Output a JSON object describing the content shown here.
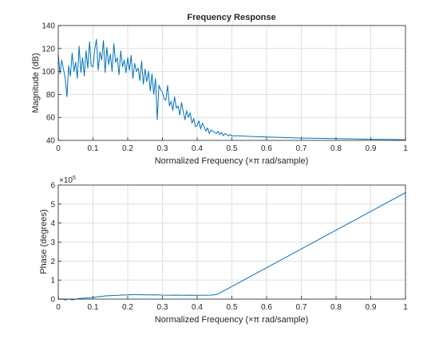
{
  "chart_data": [
    {
      "type": "line",
      "title": "Frequency Response",
      "xlabel": "Normalized Frequency  (×π rad/sample)",
      "ylabel": "Magnitude (dB)",
      "xlim": [
        0,
        1
      ],
      "ylim": [
        40,
        140
      ],
      "x_ticks": [
        "0",
        "0.1",
        "0.2",
        "0.3",
        "0.4",
        "0.5",
        "0.6",
        "0.7",
        "0.8",
        "0.9",
        "1"
      ],
      "y_ticks": [
        "40",
        "60",
        "80",
        "100",
        "120",
        "140"
      ],
      "grid": true,
      "color": "#0072bd",
      "series": [
        {
          "x": [
            0,
            0.005,
            0.01,
            0.015,
            0.02,
            0.025,
            0.03,
            0.035,
            0.04,
            0.045,
            0.05,
            0.055,
            0.06,
            0.065,
            0.07,
            0.075,
            0.08,
            0.085,
            0.09,
            0.095,
            0.1,
            0.105,
            0.11,
            0.115,
            0.12,
            0.125,
            0.13,
            0.135,
            0.14,
            0.145,
            0.15,
            0.155,
            0.16,
            0.165,
            0.17,
            0.175,
            0.18,
            0.185,
            0.19,
            0.195,
            0.2,
            0.205,
            0.21,
            0.215,
            0.22,
            0.225,
            0.23,
            0.235,
            0.24,
            0.245,
            0.25,
            0.255,
            0.26,
            0.265,
            0.27,
            0.275,
            0.28,
            0.285,
            0.29,
            0.295,
            0.3,
            0.305,
            0.31,
            0.315,
            0.32,
            0.325,
            0.33,
            0.335,
            0.34,
            0.345,
            0.35,
            0.355,
            0.36,
            0.365,
            0.37,
            0.375,
            0.38,
            0.385,
            0.39,
            0.395,
            0.4,
            0.405,
            0.41,
            0.415,
            0.42,
            0.425,
            0.43,
            0.435,
            0.44,
            0.445,
            0.45,
            0.455,
            0.46,
            0.465,
            0.47,
            0.475,
            0.48,
            0.485,
            0.49,
            0.495,
            0.5,
            0.52,
            0.55,
            0.6,
            0.65,
            0.7,
            0.75,
            0.8,
            0.85,
            0.9,
            0.95,
            1.0
          ],
          "y": [
            115,
            98,
            110,
            102,
            94,
            78,
            105,
            96,
            116,
            100,
            108,
            94,
            122,
            99,
            112,
            96,
            118,
            103,
            126,
            105,
            104,
            119,
            128,
            101,
            117,
            110,
            127,
            99,
            121,
            106,
            115,
            100,
            124,
            108,
            112,
            97,
            118,
            104,
            110,
            99,
            112,
            101,
            114,
            94,
            107,
            100,
            103,
            92,
            109,
            89,
            102,
            91,
            100,
            83,
            98,
            80,
            94,
            58,
            88,
            84,
            82,
            76,
            75,
            88,
            70,
            74,
            66,
            78,
            68,
            70,
            62,
            73,
            65,
            58,
            66,
            60,
            64,
            55,
            59,
            52,
            53,
            57,
            50,
            55,
            52,
            48,
            51,
            46,
            49,
            48,
            47,
            46,
            48,
            45,
            47,
            44,
            46,
            45,
            44,
            45,
            44,
            44,
            43.5,
            43,
            42.5,
            42,
            41.8,
            41.5,
            41.3,
            41,
            40.8,
            40.5
          ]
        }
      ]
    },
    {
      "type": "line",
      "title": "",
      "xlabel": "Normalized Frequency  (×π rad/sample)",
      "ylabel": "Phase (degrees)",
      "xlim": [
        0,
        1
      ],
      "ylim": [
        0,
        600000
      ],
      "x_ticks": [
        "0",
        "0.1",
        "0.2",
        "0.3",
        "0.4",
        "0.5",
        "0.6",
        "0.7",
        "0.8",
        "0.9",
        "1"
      ],
      "y_ticks": [
        "0",
        "1",
        "2",
        "3",
        "4",
        "5",
        "6"
      ],
      "y_exponent": "×10",
      "y_exponent_power": "5",
      "grid": true,
      "color": "#0072bd",
      "series": [
        {
          "x": [
            0,
            0.01,
            0.02,
            0.03,
            0.04,
            0.06,
            0.08,
            0.1,
            0.12,
            0.14,
            0.16,
            0.18,
            0.2,
            0.22,
            0.24,
            0.26,
            0.28,
            0.3,
            0.32,
            0.34,
            0.36,
            0.38,
            0.4,
            0.42,
            0.44,
            0.45,
            0.46,
            1.0
          ],
          "y": [
            -3000,
            2000,
            -5000,
            1000,
            -4000,
            3000,
            6000,
            9000,
            14000,
            17000,
            19000,
            21000,
            22000,
            24000,
            23000,
            22000,
            22500,
            21000,
            20500,
            21000,
            20000,
            20500,
            20000,
            20500,
            21000,
            23000,
            27000,
            560000
          ]
        }
      ]
    }
  ]
}
